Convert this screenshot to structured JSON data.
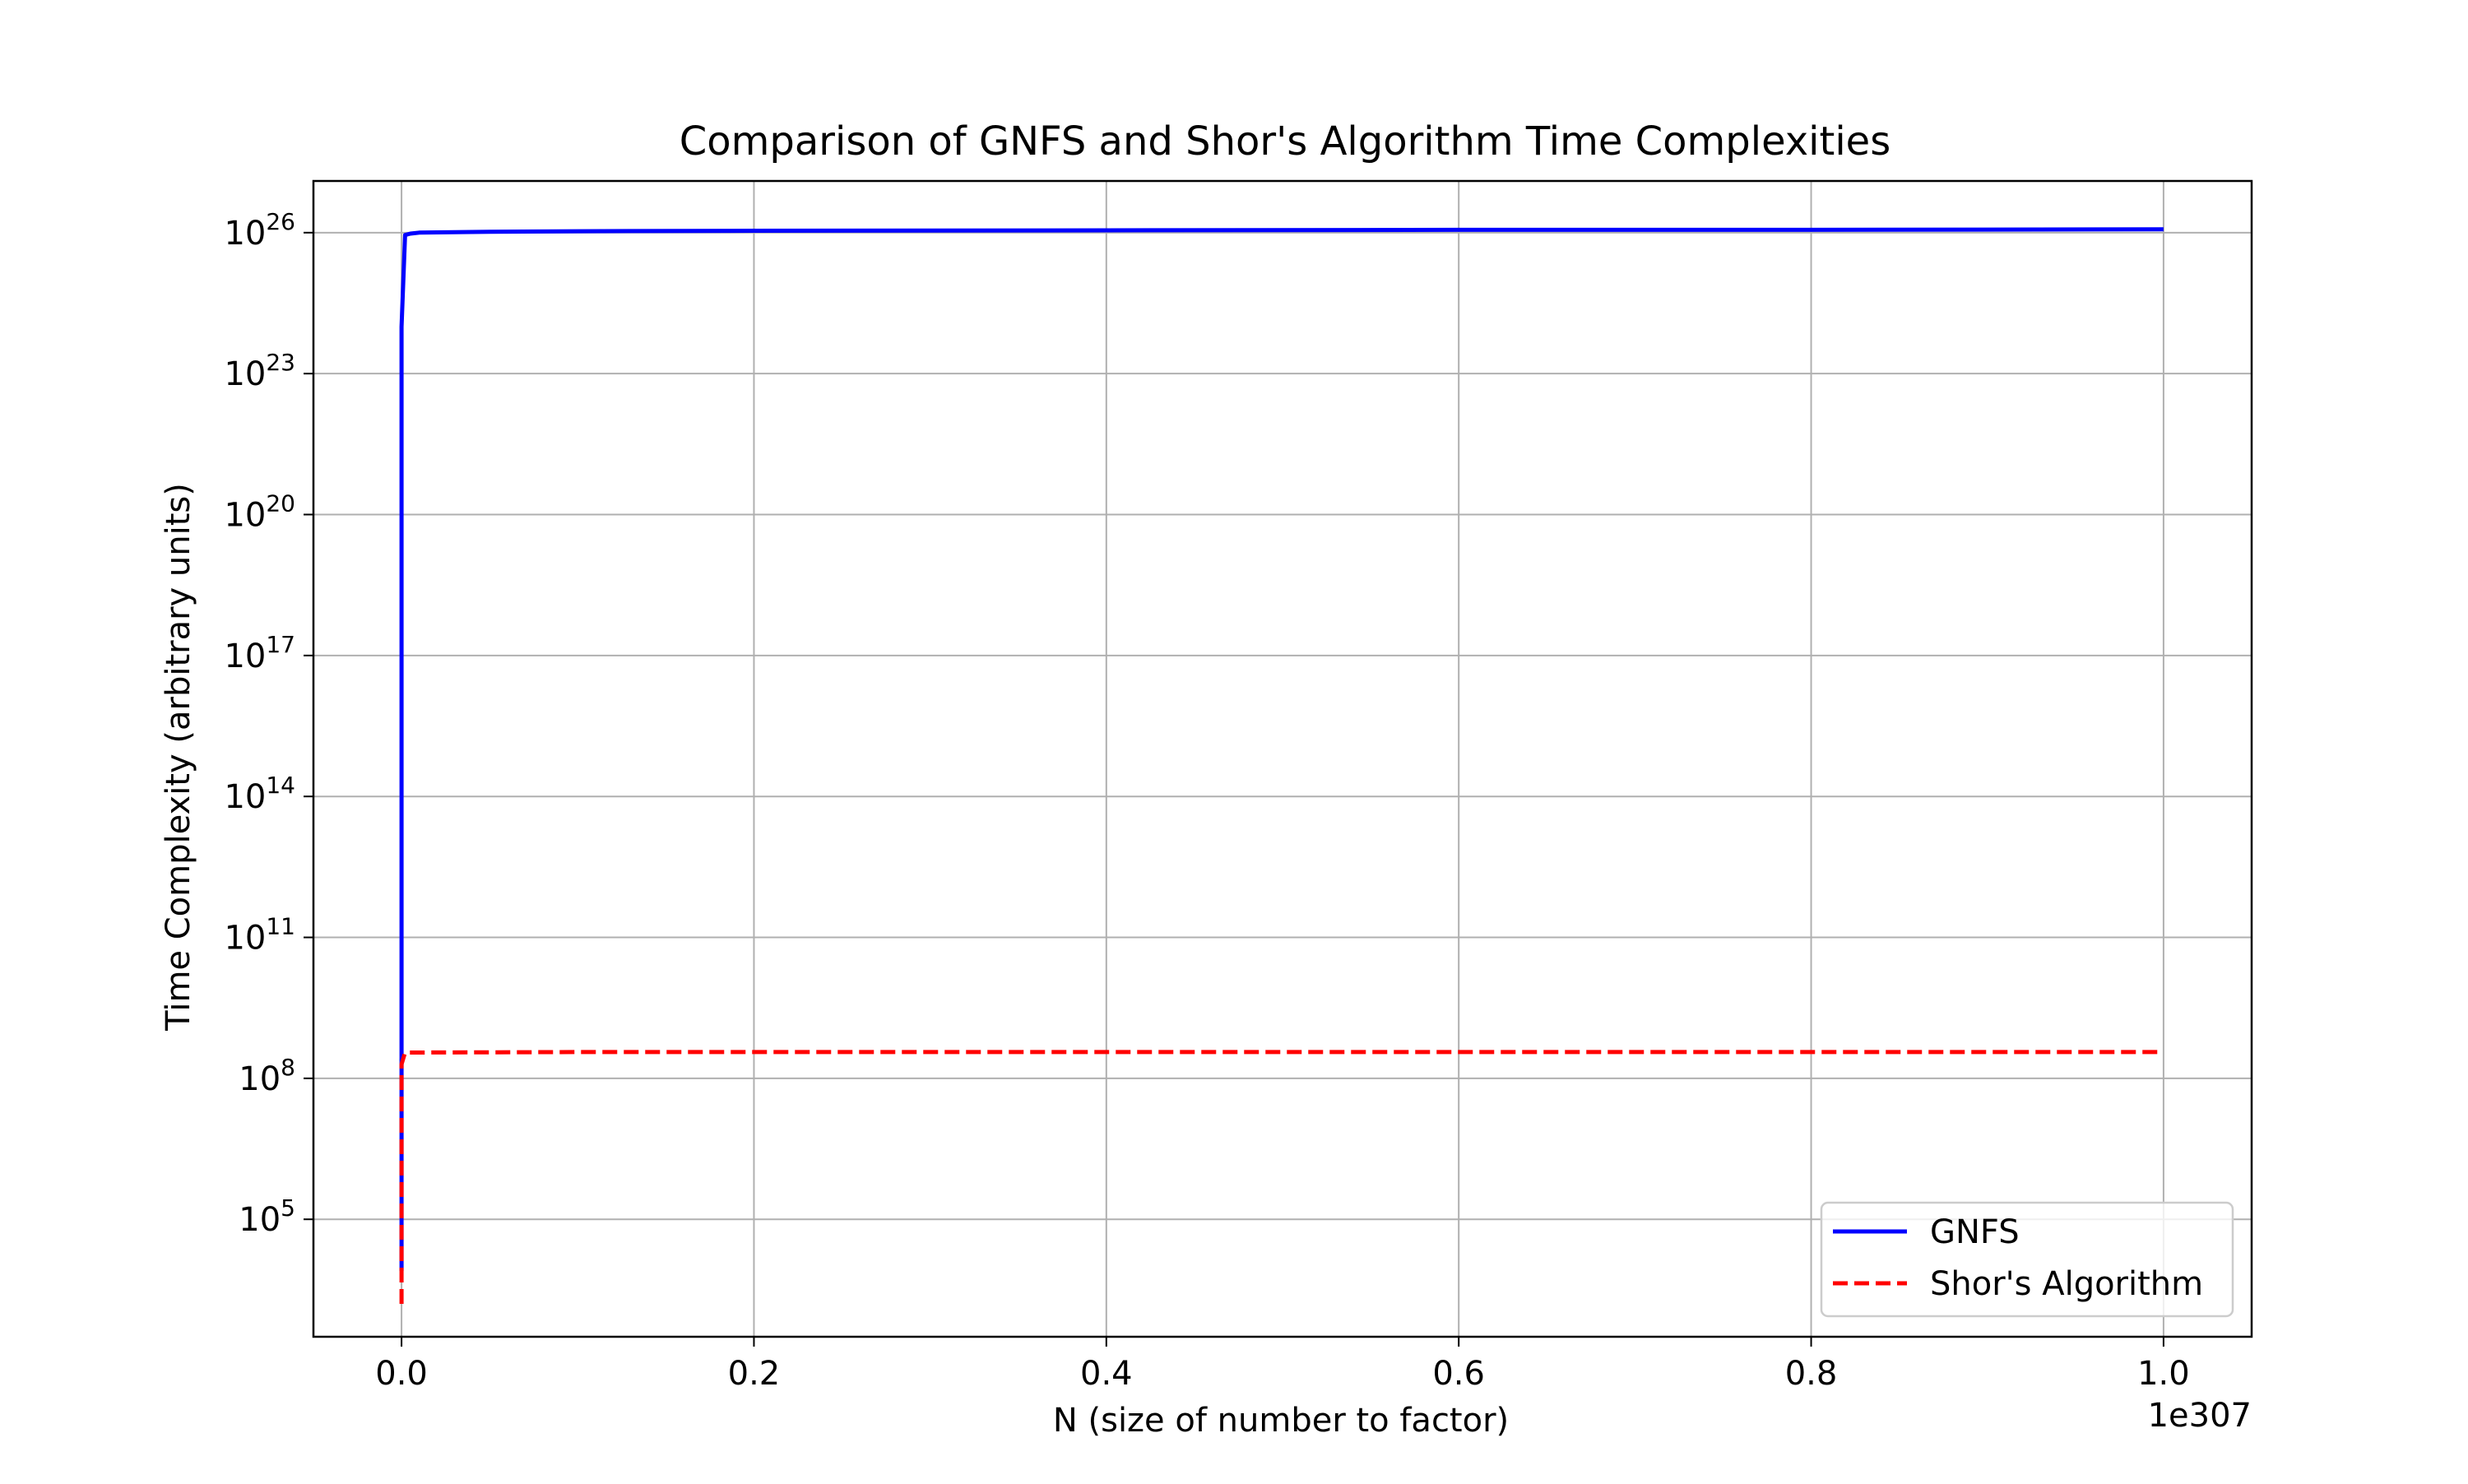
{
  "chart_data": {
    "type": "line",
    "title": "Comparison of GNFS and Shor's Algorithm Time Complexities",
    "xlabel": "N (size of number to factor)",
    "ylabel": "Time Complexity (arbitrary units)",
    "x_offset_text": "1e307",
    "x_scale": "linear",
    "y_scale": "log",
    "xlim": [
      -0.05,
      1.05
    ],
    "ylim_log10": [
      2.5,
      27.1
    ],
    "grid": true,
    "legend_position": "lower right",
    "x_ticks": [
      0.0,
      0.2,
      0.4,
      0.6,
      0.8,
      1.0
    ],
    "x_tick_labels": [
      "0.0",
      "0.2",
      "0.4",
      "0.6",
      "0.8",
      "1.0"
    ],
    "y_ticks_log10": [
      5,
      8,
      11,
      14,
      17,
      20,
      23,
      26
    ],
    "y_tick_labels": [
      {
        "base": "10",
        "exp": "5"
      },
      {
        "base": "10",
        "exp": "8"
      },
      {
        "base": "10",
        "exp": "11"
      },
      {
        "base": "10",
        "exp": "14"
      },
      {
        "base": "10",
        "exp": "17"
      },
      {
        "base": "10",
        "exp": "20"
      },
      {
        "base": "10",
        "exp": "23"
      },
      {
        "base": "10",
        "exp": "26"
      }
    ],
    "series": [
      {
        "name": "GNFS",
        "color": "#0000ff",
        "style": "solid",
        "x": [
          0.0,
          0.0,
          0.0,
          0.0,
          0.0,
          0.002,
          0.005,
          0.01,
          0.05,
          0.1,
          0.2,
          0.4,
          0.6,
          0.8,
          1.0
        ],
        "y_log10": [
          3.9,
          8.0,
          14.0,
          20.0,
          24.0,
          25.95,
          25.98,
          26.0,
          26.02,
          26.03,
          26.04,
          26.05,
          26.06,
          26.06,
          26.07
        ]
      },
      {
        "name": "Shor's Algorithm",
        "color": "#ff0000",
        "style": "dashed",
        "x": [
          0.0,
          0.0,
          0.0,
          0.002,
          0.005,
          0.1,
          0.2,
          0.4,
          0.6,
          0.8,
          1.0
        ],
        "y_log10": [
          3.2,
          6.0,
          8.3,
          8.55,
          8.55,
          8.56,
          8.56,
          8.56,
          8.56,
          8.56,
          8.56
        ]
      }
    ]
  }
}
